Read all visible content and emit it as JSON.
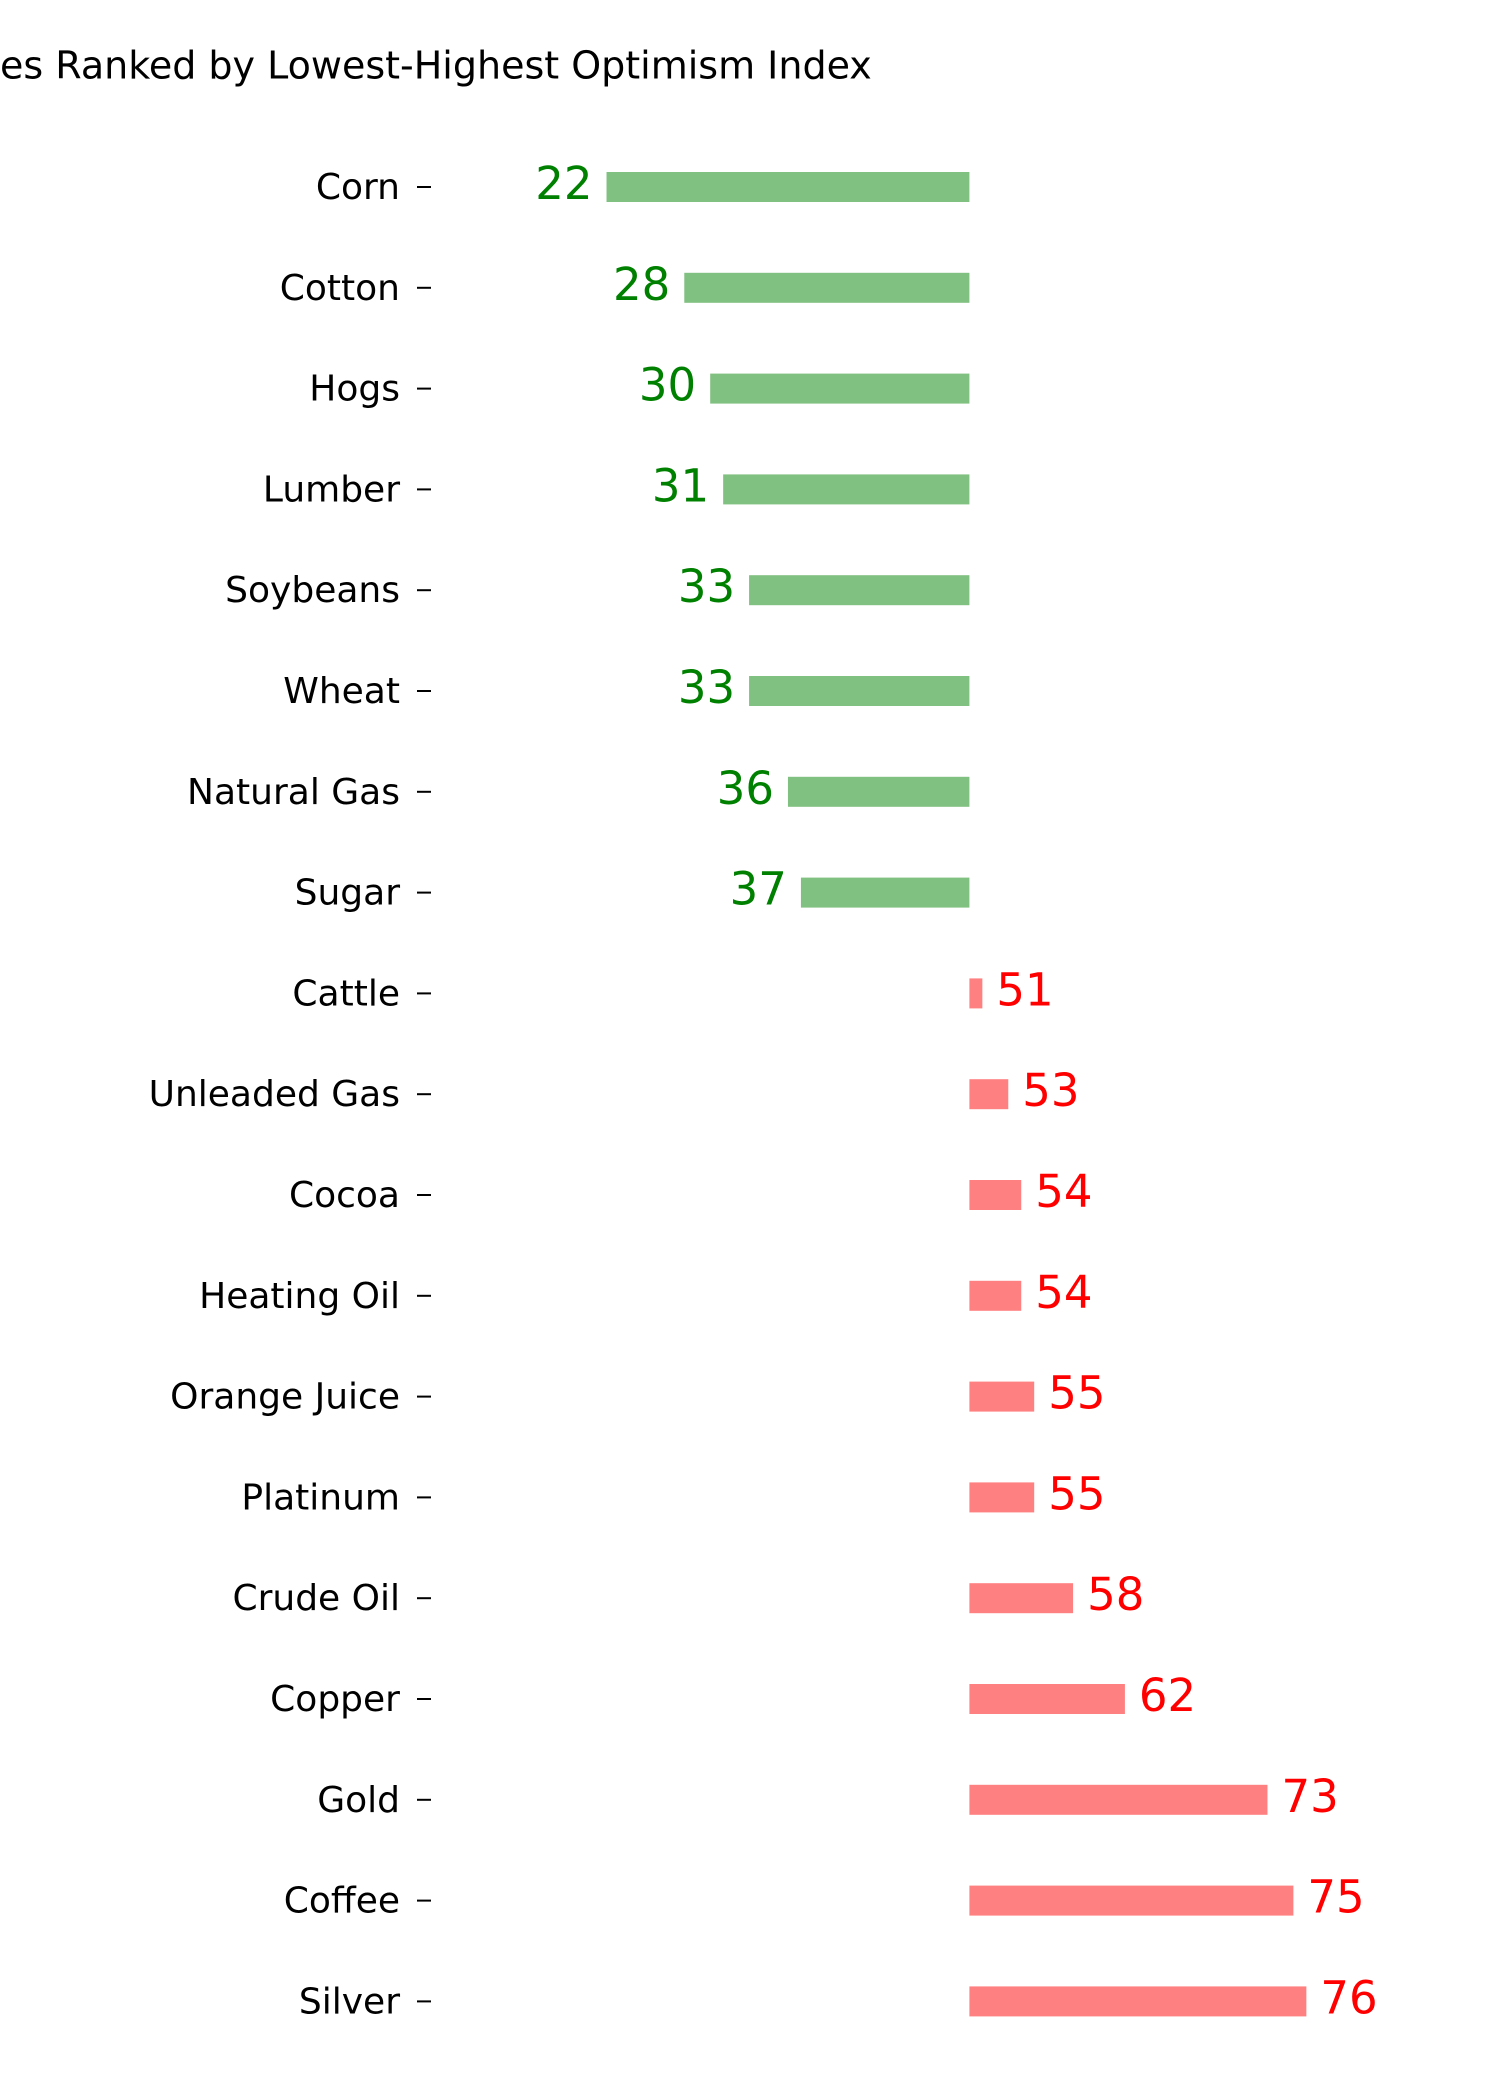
{
  "chart_data": {
    "type": "diverging-bar",
    "title": "es Ranked by Lowest-Highest Optimism Index",
    "categories": [
      "Corn",
      "Cotton",
      "Hogs",
      "Lumber",
      "Soybeans",
      "Wheat",
      "Natural Gas",
      "Sugar",
      "Cattle",
      "Unleaded Gas",
      "Cocoa",
      "Heating Oil",
      "Orange Juice",
      "Platinum",
      "Crude Oil",
      "Copper",
      "Gold",
      "Coffee",
      "Silver"
    ],
    "values": [
      22,
      28,
      30,
      31,
      33,
      33,
      36,
      37,
      51,
      53,
      54,
      54,
      55,
      55,
      58,
      62,
      73,
      75,
      76
    ],
    "baseline": 50,
    "xlim": [
      10,
      85
    ],
    "color_below": "#80c080",
    "color_above": "#ff8080",
    "label_color_below": "#008000",
    "label_color_above": "#ff0000"
  }
}
